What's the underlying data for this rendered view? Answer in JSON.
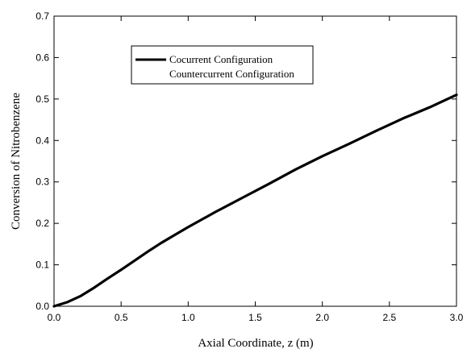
{
  "chart_data": {
    "type": "line",
    "title": "",
    "xlabel": "Axial Coordinate, z (m)",
    "ylabel": "Conversion of Nitrobenzene",
    "xlim": [
      0.0,
      3.0
    ],
    "ylim": [
      0.0,
      0.7
    ],
    "xticks": [
      "0.0",
      "0.5",
      "1.0",
      "1.5",
      "2.0",
      "2.5",
      "3.0"
    ],
    "yticks": [
      "0.0",
      "0.1",
      "0.2",
      "0.3",
      "0.4",
      "0.5",
      "0.6",
      "0.7"
    ],
    "grid": false,
    "legend_position": "top-center",
    "series": [
      {
        "name": "Cocurrent Configuration",
        "color": "#000000",
        "style": "solid-thick",
        "x": [
          0.0,
          0.1,
          0.2,
          0.3,
          0.4,
          0.5,
          0.6,
          0.7,
          0.8,
          0.9,
          1.0,
          1.2,
          1.4,
          1.6,
          1.8,
          2.0,
          2.2,
          2.4,
          2.6,
          2.8,
          3.0
        ],
        "y": [
          0.0,
          0.01,
          0.025,
          0.045,
          0.067,
          0.088,
          0.11,
          0.132,
          0.153,
          0.172,
          0.191,
          0.227,
          0.261,
          0.295,
          0.33,
          0.362,
          0.392,
          0.423,
          0.453,
          0.48,
          0.51
        ]
      },
      {
        "name": "Countercurrent Configuration",
        "color": "#000000",
        "style": "overlapping",
        "x": [
          0.0,
          0.1,
          0.2,
          0.3,
          0.4,
          0.5,
          0.6,
          0.7,
          0.8,
          0.9,
          1.0,
          1.2,
          1.4,
          1.6,
          1.8,
          2.0,
          2.2,
          2.4,
          2.6,
          2.8,
          3.0
        ],
        "y": [
          0.0,
          0.01,
          0.025,
          0.045,
          0.067,
          0.088,
          0.11,
          0.132,
          0.153,
          0.172,
          0.191,
          0.227,
          0.261,
          0.295,
          0.33,
          0.362,
          0.392,
          0.423,
          0.453,
          0.48,
          0.51
        ]
      }
    ]
  }
}
